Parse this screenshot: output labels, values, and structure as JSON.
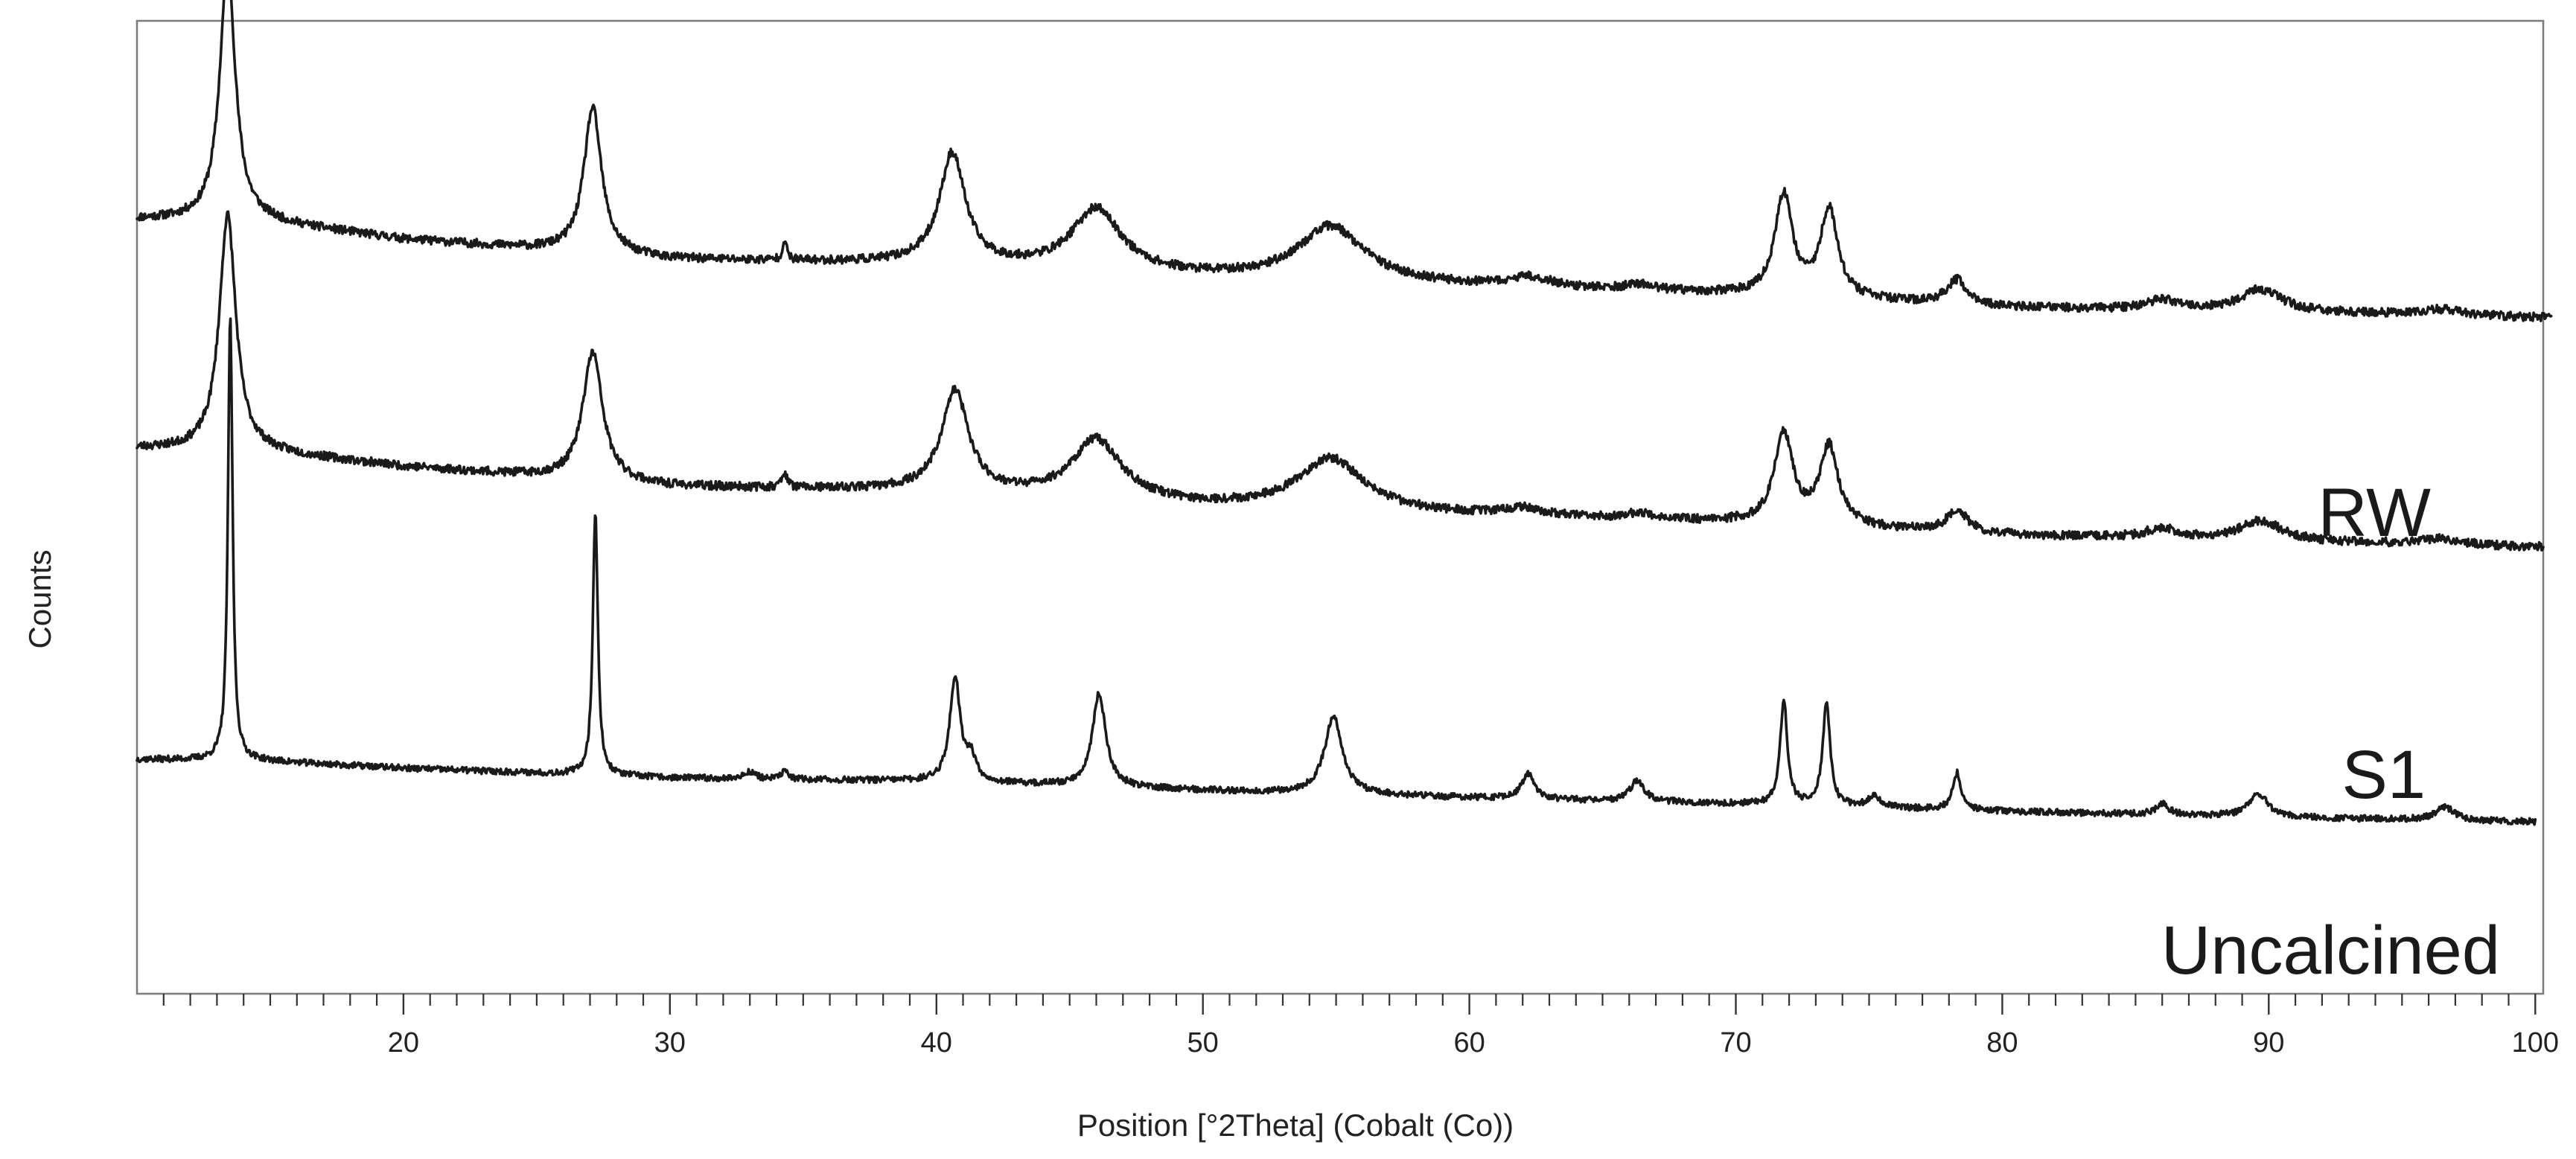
{
  "chart_data": {
    "type": "line",
    "title": "",
    "xlabel": "Position [°2Theta] (Cobalt (Co))",
    "ylabel": "Counts",
    "xlim": [
      10,
      100.3
    ],
    "x_major_ticks": [
      20,
      30,
      40,
      50,
      60,
      70,
      80,
      90,
      100
    ],
    "x_minor_step": 1,
    "y_ticks_visible": false,
    "grid": false,
    "legend": "none",
    "series": [
      {
        "name": "RW",
        "x_end": 100.6,
        "baseline": [
          [
            10,
            1.0
          ],
          [
            14.5,
            0.98
          ],
          [
            20,
            0.8
          ],
          [
            30,
            0.6
          ],
          [
            40,
            0.55
          ],
          [
            50,
            0.42
          ],
          [
            60,
            0.33
          ],
          [
            70,
            0.25
          ],
          [
            80,
            0.12
          ],
          [
            90,
            0.08
          ],
          [
            100.6,
            0.02
          ]
        ],
        "peaks": [
          {
            "pos": 13.4,
            "height": 2.55,
            "fwhm": 0.75
          },
          {
            "pos": 27.1,
            "height": 1.45,
            "fwhm": 0.85
          },
          {
            "pos": 34.3,
            "height": 0.2,
            "fwhm": 0.2
          },
          {
            "pos": 40.6,
            "height": 1.1,
            "fwhm": 1.25
          },
          {
            "pos": 46.0,
            "height": 0.62,
            "fwhm": 2.4
          },
          {
            "pos": 54.8,
            "height": 0.55,
            "fwhm": 3.2
          },
          {
            "pos": 62.3,
            "height": 0.1,
            "fwhm": 2.0
          },
          {
            "pos": 66.4,
            "height": 0.06,
            "fwhm": 1.5
          },
          {
            "pos": 71.8,
            "height": 1.0,
            "fwhm": 0.85
          },
          {
            "pos": 73.5,
            "height": 0.88,
            "fwhm": 0.85
          },
          {
            "pos": 78.3,
            "height": 0.25,
            "fwhm": 1.0
          },
          {
            "pos": 86.0,
            "height": 0.1,
            "fwhm": 1.5
          },
          {
            "pos": 89.7,
            "height": 0.22,
            "fwhm": 2.0
          },
          {
            "pos": 96.5,
            "height": 0.06,
            "fwhm": 2.0
          }
        ]
      },
      {
        "name": "S1",
        "x_end": 100.3,
        "baseline": [
          [
            10,
            1.0
          ],
          [
            14.5,
            0.97
          ],
          [
            20,
            0.82
          ],
          [
            30,
            0.62
          ],
          [
            40,
            0.57
          ],
          [
            50,
            0.42
          ],
          [
            60,
            0.33
          ],
          [
            70,
            0.26
          ],
          [
            80,
            0.14
          ],
          [
            90,
            0.08
          ],
          [
            100.3,
            0.02
          ]
        ],
        "peaks": [
          {
            "pos": 13.4,
            "height": 2.35,
            "fwhm": 0.8
          },
          {
            "pos": 27.1,
            "height": 1.28,
            "fwhm": 0.95
          },
          {
            "pos": 34.3,
            "height": 0.15,
            "fwhm": 0.25
          },
          {
            "pos": 40.7,
            "height": 1.0,
            "fwhm": 1.3
          },
          {
            "pos": 46.0,
            "height": 0.6,
            "fwhm": 2.4
          },
          {
            "pos": 54.8,
            "height": 0.52,
            "fwhm": 3.2
          },
          {
            "pos": 62.0,
            "height": 0.08,
            "fwhm": 2.0
          },
          {
            "pos": 66.4,
            "height": 0.06,
            "fwhm": 1.5
          },
          {
            "pos": 71.8,
            "height": 0.9,
            "fwhm": 0.9
          },
          {
            "pos": 73.5,
            "height": 0.78,
            "fwhm": 0.9
          },
          {
            "pos": 78.3,
            "height": 0.22,
            "fwhm": 1.0
          },
          {
            "pos": 86.0,
            "height": 0.1,
            "fwhm": 1.5
          },
          {
            "pos": 89.7,
            "height": 0.2,
            "fwhm": 2.0
          },
          {
            "pos": 96.5,
            "height": 0.06,
            "fwhm": 2.0
          }
        ]
      },
      {
        "name": "Uncalcined",
        "x_end": 100.0,
        "baseline": [
          [
            10,
            1.0
          ],
          [
            14.5,
            0.98
          ],
          [
            20,
            0.88
          ],
          [
            30,
            0.75
          ],
          [
            40,
            0.7
          ],
          [
            50,
            0.58
          ],
          [
            60,
            0.48
          ],
          [
            70,
            0.4
          ],
          [
            80,
            0.3
          ],
          [
            90,
            0.22
          ],
          [
            100,
            0.16
          ]
        ],
        "peaks": [
          {
            "pos": 13.5,
            "height": 6.0,
            "fwhm": 0.22
          },
          {
            "pos": 27.2,
            "height": 3.55,
            "fwhm": 0.24
          },
          {
            "pos": 33.0,
            "height": 0.1,
            "fwhm": 0.5
          },
          {
            "pos": 34.3,
            "height": 0.12,
            "fwhm": 0.3
          },
          {
            "pos": 40.7,
            "height": 1.4,
            "fwhm": 0.5
          },
          {
            "pos": 41.3,
            "height": 0.3,
            "fwhm": 0.5
          },
          {
            "pos": 46.1,
            "height": 1.25,
            "fwhm": 0.65
          },
          {
            "pos": 54.9,
            "height": 1.05,
            "fwhm": 0.85
          },
          {
            "pos": 62.2,
            "height": 0.35,
            "fwhm": 0.6
          },
          {
            "pos": 66.3,
            "height": 0.28,
            "fwhm": 0.7
          },
          {
            "pos": 71.8,
            "height": 1.4,
            "fwhm": 0.35
          },
          {
            "pos": 73.4,
            "height": 1.4,
            "fwhm": 0.35
          },
          {
            "pos": 75.2,
            "height": 0.16,
            "fwhm": 0.6
          },
          {
            "pos": 78.3,
            "height": 0.5,
            "fwhm": 0.4
          },
          {
            "pos": 86.0,
            "height": 0.15,
            "fwhm": 0.6
          },
          {
            "pos": 89.6,
            "height": 0.32,
            "fwhm": 0.9
          },
          {
            "pos": 96.6,
            "height": 0.18,
            "fwhm": 0.9
          }
        ]
      }
    ]
  },
  "labels": {
    "rw": "RW",
    "s1": "S1",
    "uncalcined": "Uncalcined"
  },
  "colors": {
    "trace": "#1a1a1a",
    "frame": "#7a7a7a"
  }
}
